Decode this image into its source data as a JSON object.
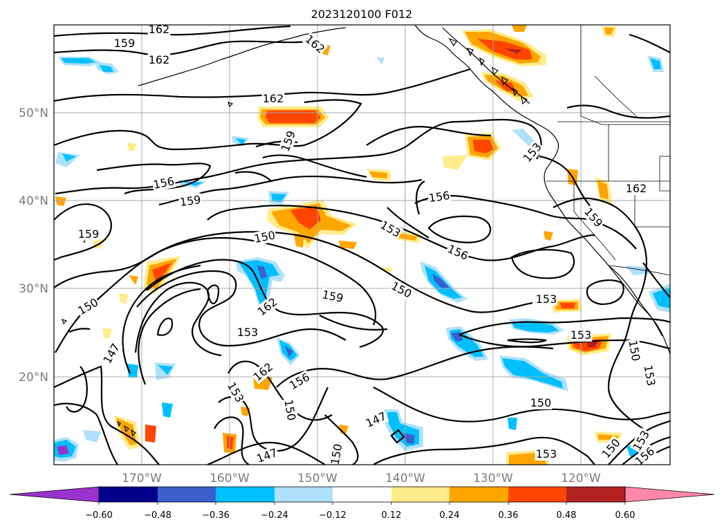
{
  "title": "2023120100 F012",
  "map": {
    "lat_labels": [
      "50°N",
      "40°N",
      "30°N",
      "20°N"
    ],
    "lon_labels": [
      "170°W",
      "160°W",
      "150°W",
      "140°W",
      "130°W",
      "120°W"
    ],
    "contour_interval": 3,
    "contour_labels": [
      "162",
      "159",
      "162",
      "162",
      "162",
      "159",
      "156",
      "159",
      "159",
      "150",
      "153",
      "156",
      "150",
      "159",
      "162",
      "153",
      "150",
      "147",
      "162",
      "156",
      "153",
      "150",
      "147",
      "147",
      "150",
      "153",
      "150",
      "153",
      "156",
      "162",
      "159",
      "153",
      "150",
      "153",
      "153",
      "150",
      "153",
      "156"
    ]
  },
  "colorbar": {
    "tick_labels": [
      "−0.60",
      "−0.48",
      "−0.36",
      "−0.24",
      "−0.12",
      "0.12",
      "0.24",
      "0.36",
      "0.48",
      "0.60"
    ],
    "colors": {
      "lt_-0.60": "#9933cc",
      "-0.60_-0.48": "#00008b",
      "-0.48_-0.36": "#3a5fcd",
      "-0.36_-0.24": "#00bfff",
      "-0.24_-0.12": "#afe1fa",
      "-0.12_0.12": "#ffffff",
      "0.12_0.24": "#ffec8b",
      "0.24_0.36": "#ffa500",
      "0.36_0.48": "#ff4500",
      "0.48_0.60": "#b22222",
      "gt_0.60": "#ff88aa"
    },
    "extend": "both"
  }
}
